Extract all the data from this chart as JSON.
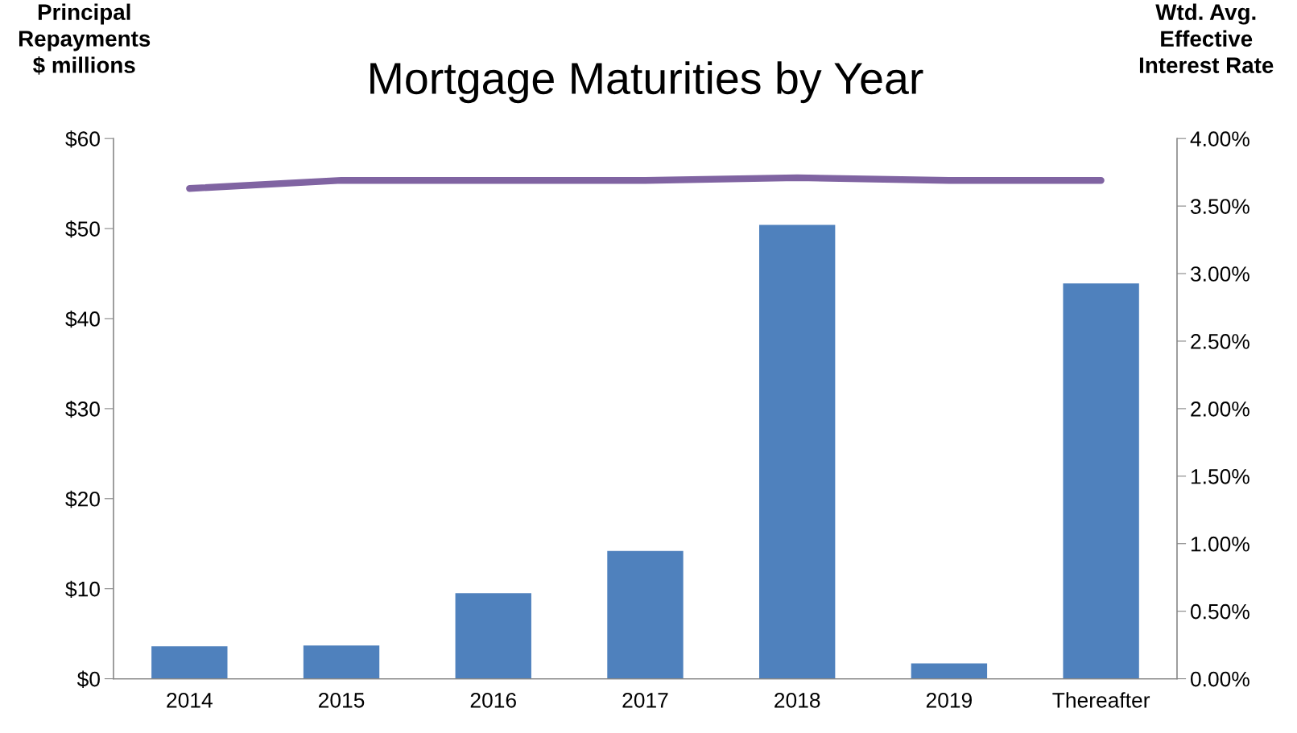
{
  "chart_data": {
    "type": "bar",
    "title": "Mortgage Maturities by Year",
    "ylabel": "Principal\nRepayments\n$ millions",
    "y2label": "Wtd. Avg.\nEffective\nInterest Rate",
    "categories": [
      "2014",
      "2015",
      "2016",
      "2017",
      "2018",
      "2019",
      "Thereafter"
    ],
    "series": [
      {
        "color": "#4f81bd",
        "values": [
          3.6,
          3.7,
          9.5,
          14.2,
          50.4,
          1.7,
          43.9
        ]
      },
      {
        "type": "line",
        "axis": "y2",
        "color": "#8064a2",
        "values": [
          3.63,
          3.69,
          3.69,
          3.69,
          3.71,
          3.69,
          3.69
        ]
      }
    ],
    "ylim": [
      0,
      60
    ],
    "yticks": [
      {
        "value": 0,
        "label": "$0"
      },
      {
        "value": 10,
        "label": "$10"
      },
      {
        "value": 20,
        "label": "$20"
      },
      {
        "value": 30,
        "label": "$30"
      },
      {
        "value": 40,
        "label": "$40"
      },
      {
        "value": 50,
        "label": "$50"
      },
      {
        "value": 60,
        "label": "$60"
      }
    ],
    "y2lim": [
      0,
      4
    ],
    "y2ticks": [
      {
        "value": 0,
        "label": "0.00%"
      },
      {
        "value": 0.5,
        "label": "0.50%"
      },
      {
        "value": 1,
        "label": "1.00%"
      },
      {
        "value": 1.5,
        "label": "1.50%"
      },
      {
        "value": 2,
        "label": "2.00%"
      },
      {
        "value": 2.5,
        "label": "2.50%"
      },
      {
        "value": 3,
        "label": "3.00%"
      },
      {
        "value": 3.5,
        "label": "3.50%"
      },
      {
        "value": 4,
        "label": "4.00%"
      }
    ],
    "grid": false,
    "marker": "none",
    "line_style": "solid"
  }
}
